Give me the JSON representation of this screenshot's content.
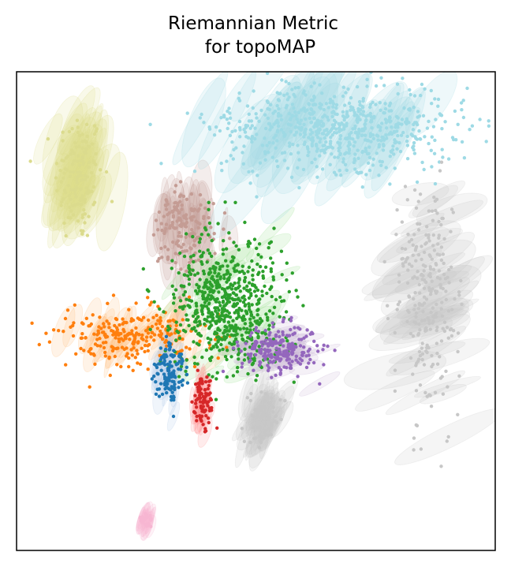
{
  "chart_data": {
    "type": "scatter",
    "title_line1": "Riemannian Metric",
    "title_line2": "for topoMAP",
    "xlabel": "",
    "ylabel": "",
    "ticks": "none",
    "grid": false,
    "legend": "none",
    "xlim": [
      0,
      100
    ],
    "ylim": [
      0,
      100
    ],
    "description_of_marks": "points with semi-transparent ellipses (Riemannian metric glyphs) per cluster",
    "clusters": [
      {
        "color": "#dbdb8d",
        "glyph": "#dbdb8d",
        "center": [
          13,
          78
        ],
        "spread": [
          2.5,
          7
        ],
        "n": 140,
        "ellipse_len": [
          10,
          22
        ],
        "ellipse_angle": [
          -80,
          -60
        ]
      },
      {
        "color": "#ff7f0e",
        "glyph": "#ffbb78",
        "center": [
          25,
          45
        ],
        "spread": [
          7,
          3
        ],
        "n": 260,
        "ellipse_len": [
          6,
          14
        ],
        "ellipse_angle": [
          -80,
          -40
        ]
      },
      {
        "color": "#c49c94",
        "glyph": "#c49c94",
        "center": [
          35,
          67
        ],
        "spread": [
          3,
          5
        ],
        "n": 160,
        "ellipse_len": [
          6,
          16
        ],
        "ellipse_angle": [
          -95,
          -80
        ]
      },
      {
        "color": "#2ca02c",
        "glyph": "#98df8a",
        "center": [
          44,
          51
        ],
        "spread": [
          6,
          7
        ],
        "n": 650,
        "ellipse_len": [
          5,
          14
        ],
        "ellipse_angle": [
          -60,
          -20
        ]
      },
      {
        "color": "#9467bd",
        "glyph": "#c5b0d5",
        "center": [
          55,
          42
        ],
        "spread": [
          4,
          2.5
        ],
        "n": 230,
        "ellipse_len": [
          5,
          11
        ],
        "ellipse_angle": [
          -30,
          10
        ]
      },
      {
        "color": "#1f77b4",
        "glyph": "#aec7e8",
        "center": [
          32,
          37
        ],
        "spread": [
          1.5,
          3
        ],
        "n": 120,
        "ellipse_len": [
          4,
          8
        ],
        "ellipse_angle": [
          -90,
          -70
        ]
      },
      {
        "color": "#d62728",
        "glyph": "#ff9896",
        "center": [
          39,
          31
        ],
        "spread": [
          1,
          3
        ],
        "n": 90,
        "ellipse_len": [
          3,
          7
        ],
        "ellipse_angle": [
          -90,
          -70
        ]
      },
      {
        "color": "#9edae5",
        "glyph": "#9edae5",
        "center": [
          67,
          88
        ],
        "spread": [
          13,
          4.5
        ],
        "n": 700,
        "ellipse_len": [
          15,
          30
        ],
        "ellipse_angle": [
          -70,
          -50
        ]
      },
      {
        "color": "#c7c7c7",
        "glyph": "#c7c7c7",
        "center": [
          86,
          52
        ],
        "spread": [
          3,
          12
        ],
        "n": 260,
        "ellipse_len": [
          10,
          25
        ],
        "ellipse_angle": [
          -35,
          -10
        ]
      },
      {
        "color": "#c7c7c7",
        "glyph": "#c7c7c7",
        "center": [
          52,
          28
        ],
        "spread": [
          2,
          2.5
        ],
        "n": 60,
        "ellipse_len": [
          6,
          12
        ],
        "ellipse_angle": [
          -80,
          -50
        ]
      },
      {
        "color": "#f7b6d2",
        "glyph": "#f7b6d2",
        "center": [
          27,
          6
        ],
        "spread": [
          0.7,
          0.8
        ],
        "n": 25,
        "ellipse_len": [
          4,
          7
        ],
        "ellipse_angle": [
          -80,
          -70
        ]
      }
    ]
  }
}
